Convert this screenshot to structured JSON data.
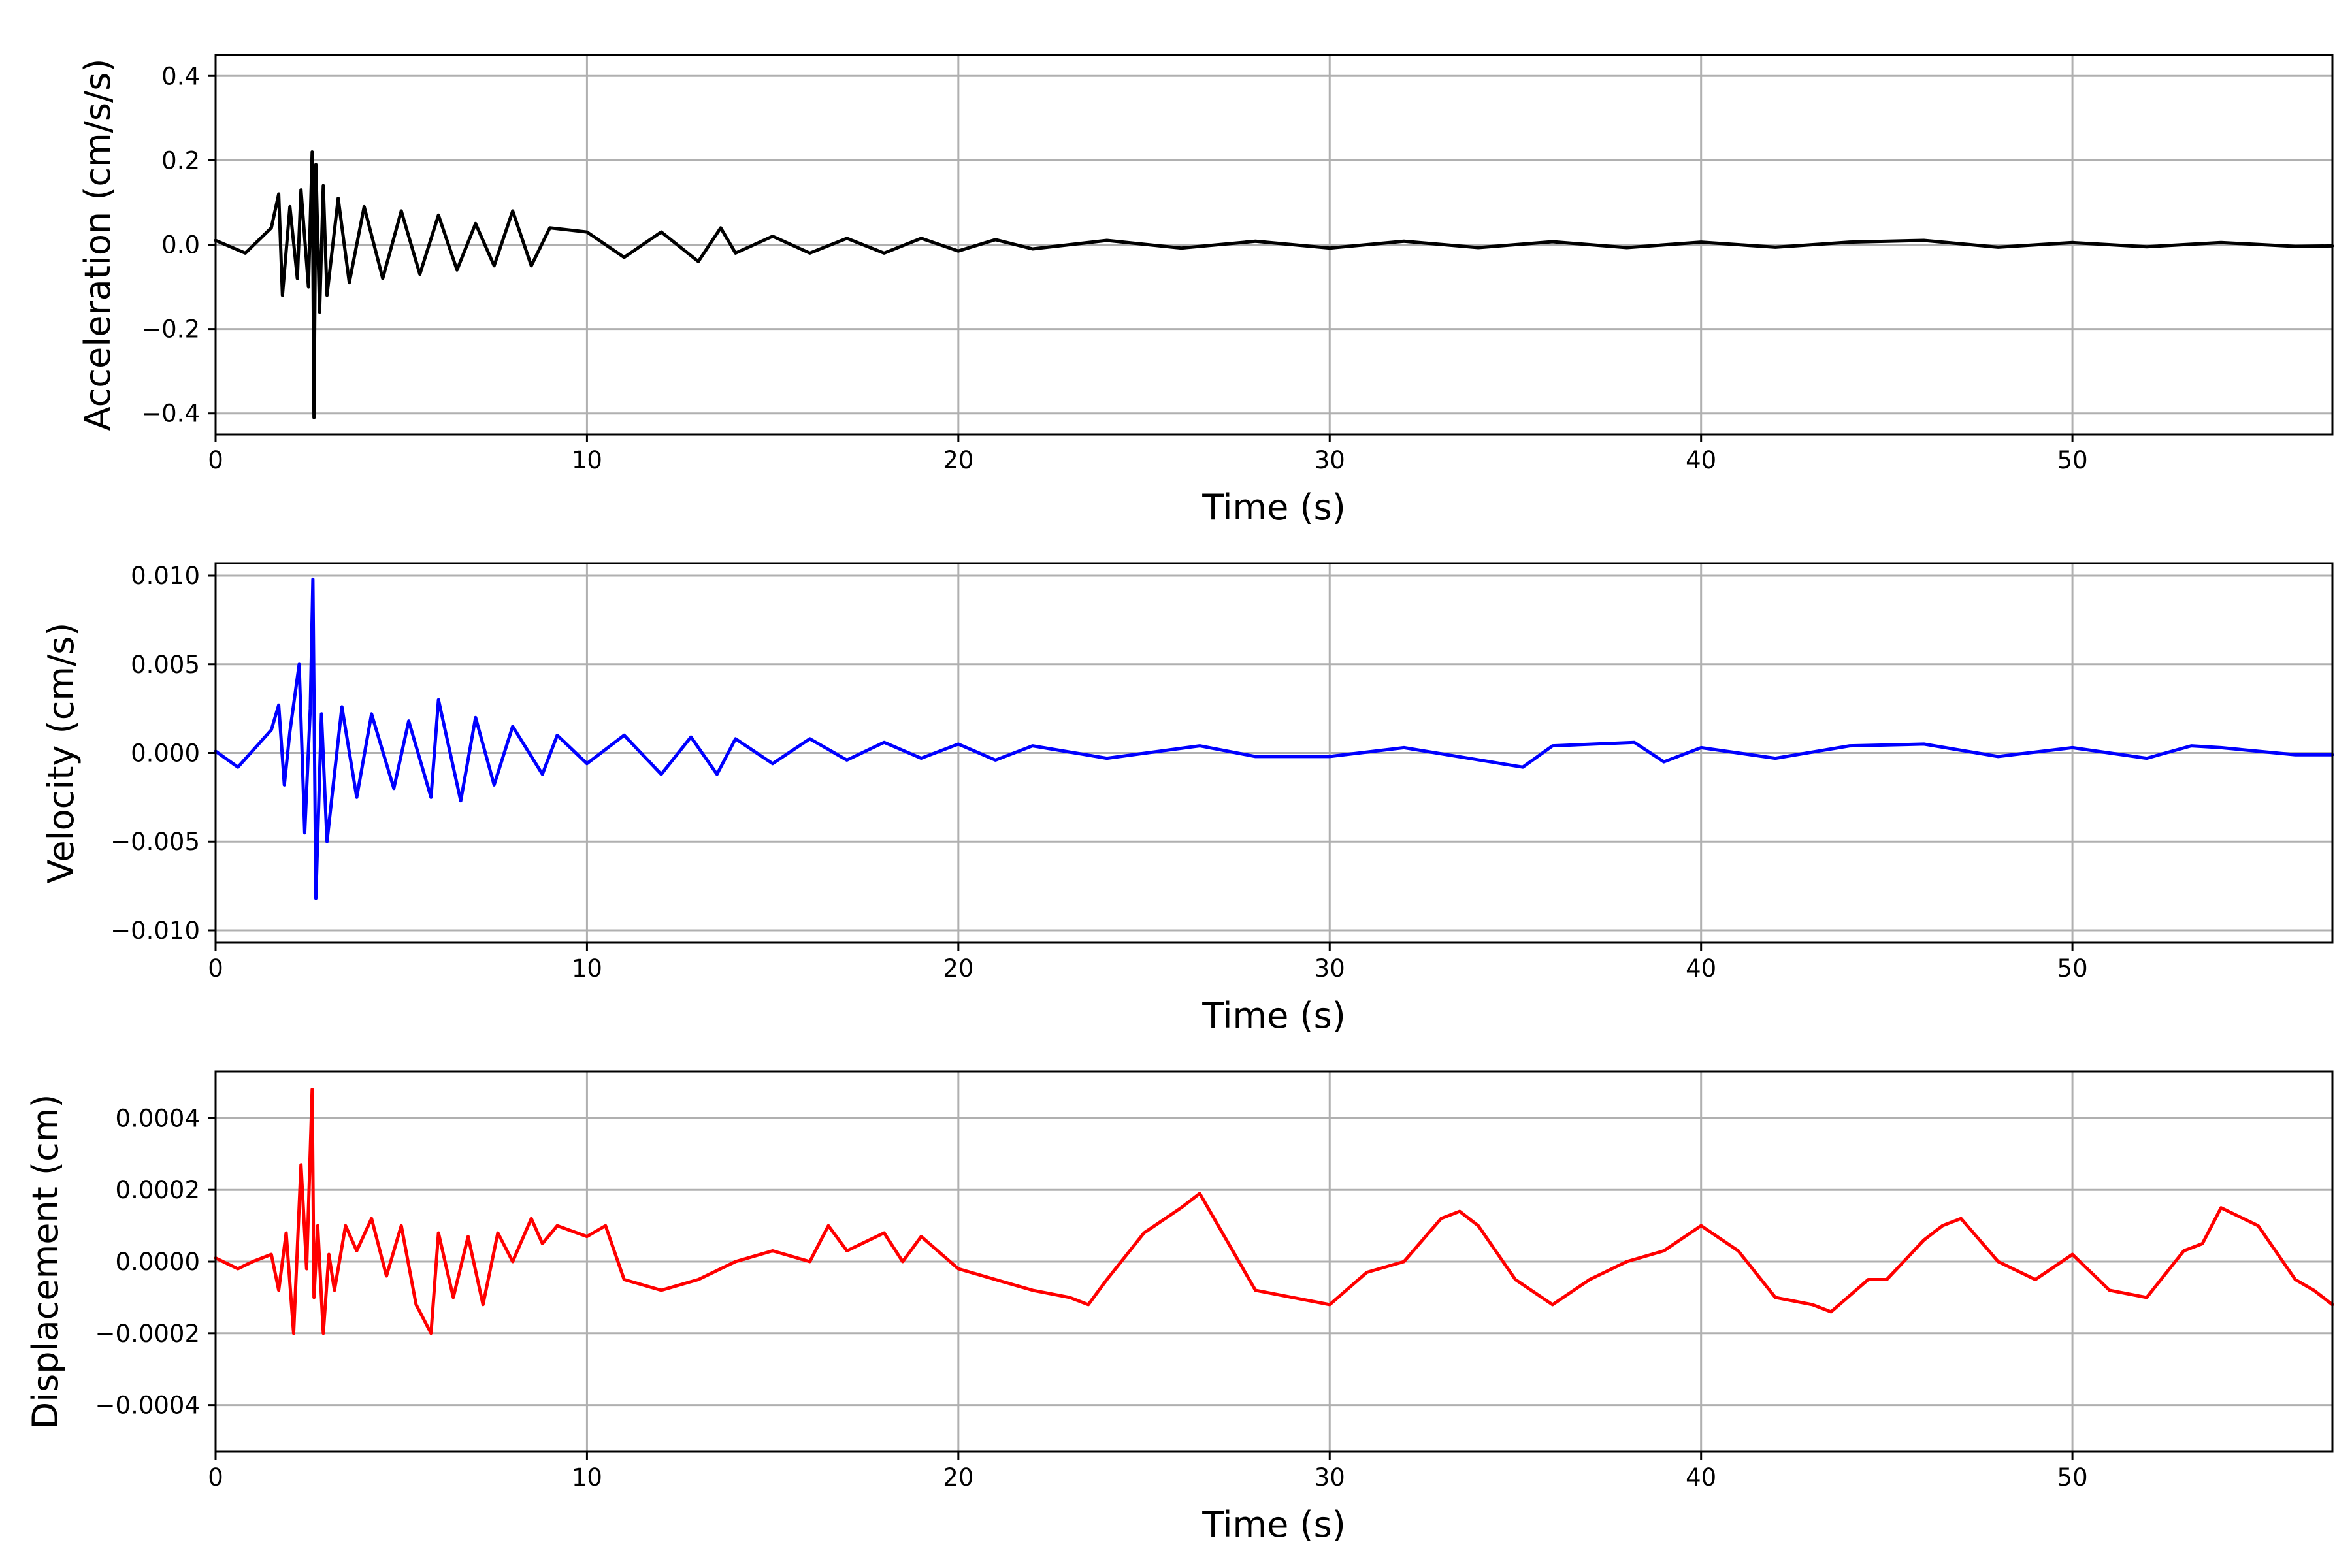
{
  "chart_data": [
    {
      "type": "line",
      "xlabel": "Time (s)",
      "ylabel": "Acceleration (cm/s/s)",
      "xlim": [
        0,
        57
      ],
      "ylim": [
        -0.45,
        0.45
      ],
      "xticks": [
        0,
        10,
        20,
        30,
        40,
        50
      ],
      "xtick_labels": [
        "0",
        "10",
        "20",
        "30",
        "40",
        "50"
      ],
      "yticks": [
        -0.4,
        -0.2,
        0.0,
        0.2,
        0.4
      ],
      "ytick_labels": [
        "−0.4",
        "−0.2",
        "0.0",
        "0.2",
        "0.4"
      ],
      "grid": true,
      "color": "#000000",
      "series": [
        {
          "x": [
            0,
            0.8,
            1.5,
            1.7,
            1.8,
            2.0,
            2.2,
            2.3,
            2.5,
            2.6,
            2.65,
            2.7,
            2.8,
            2.9,
            3.0,
            3.3,
            3.6,
            4.0,
            4.5,
            5.0,
            5.5,
            6.0,
            6.5,
            7.0,
            7.5,
            8.0,
            8.5,
            9.0,
            10.0,
            11.0,
            12.0,
            13.0,
            13.6,
            14.0,
            15.0,
            16.0,
            17.0,
            18.0,
            19.0,
            20.0,
            21.0,
            22.0,
            24.0,
            26.0,
            28.0,
            30.0,
            32.0,
            34.0,
            36.0,
            38.0,
            40.0,
            42.0,
            44.0,
            46.0,
            48.0,
            50.0,
            52.0,
            54.0,
            56.0,
            57.0
          ],
          "y": [
            0.01,
            -0.02,
            0.04,
            0.12,
            -0.12,
            0.09,
            -0.08,
            0.13,
            -0.1,
            0.22,
            -0.41,
            0.19,
            -0.16,
            0.14,
            -0.12,
            0.11,
            -0.09,
            0.09,
            -0.08,
            0.08,
            -0.07,
            0.07,
            -0.06,
            0.05,
            -0.05,
            0.08,
            -0.05,
            0.04,
            0.03,
            -0.03,
            0.03,
            -0.04,
            0.04,
            -0.02,
            0.02,
            -0.02,
            0.015,
            -0.02,
            0.015,
            -0.015,
            0.012,
            -0.01,
            0.01,
            -0.008,
            0.008,
            -0.008,
            0.008,
            -0.007,
            0.007,
            -0.007,
            0.006,
            -0.006,
            0.006,
            0.01,
            -0.006,
            0.005,
            -0.005,
            0.005,
            -0.004,
            -0.003
          ]
        }
      ]
    },
    {
      "type": "line",
      "xlabel": "Time (s)",
      "ylabel": "Velocity (cm/s)",
      "xlim": [
        0,
        57
      ],
      "ylim": [
        -0.0107,
        0.0107
      ],
      "xticks": [
        0,
        10,
        20,
        30,
        40,
        50
      ],
      "xtick_labels": [
        "0",
        "10",
        "20",
        "30",
        "40",
        "50"
      ],
      "yticks": [
        -0.01,
        -0.005,
        0.0,
        0.005,
        0.01
      ],
      "ytick_labels": [
        "−0.010",
        "−0.005",
        "0.000",
        "0.005",
        "0.010"
      ],
      "grid": true,
      "color": "#0000ff",
      "series": [
        {
          "x": [
            0,
            0.6,
            1.5,
            1.7,
            1.85,
            2.0,
            2.25,
            2.4,
            2.55,
            2.62,
            2.7,
            2.85,
            3.0,
            3.4,
            3.8,
            4.2,
            4.8,
            5.2,
            5.8,
            6.0,
            6.6,
            7.0,
            7.5,
            8.0,
            8.8,
            9.2,
            10.0,
            11.0,
            12.0,
            12.8,
            13.5,
            14.0,
            15.0,
            16.0,
            17.0,
            18.0,
            19.0,
            20.0,
            21.0,
            22.0,
            24.0,
            26.5,
            28.0,
            30.0,
            32.0,
            35.2,
            36.0,
            38.2,
            39.0,
            40.0,
            42.0,
            44.0,
            46.0,
            48.0,
            50.0,
            52.0,
            53.2,
            54.0,
            56.0,
            57.0
          ],
          "y": [
            0.0001,
            -0.0008,
            0.0013,
            0.0027,
            -0.0018,
            0.0012,
            0.005,
            -0.0045,
            0.0025,
            0.0098,
            -0.0082,
            0.0022,
            -0.005,
            0.0026,
            -0.0025,
            0.0022,
            -0.002,
            0.0018,
            -0.0025,
            0.003,
            -0.0027,
            0.002,
            -0.0018,
            0.0015,
            -0.0012,
            0.001,
            -0.0006,
            0.001,
            -0.0012,
            0.0009,
            -0.0012,
            0.0008,
            -0.0006,
            0.0008,
            -0.0004,
            0.0006,
            -0.0003,
            0.0005,
            -0.0004,
            0.0004,
            -0.0003,
            0.0004,
            -0.0002,
            -0.0002,
            0.0003,
            -0.0008,
            0.0004,
            0.0006,
            -0.0005,
            0.0003,
            -0.0003,
            0.0004,
            0.0005,
            -0.0002,
            0.0003,
            -0.0003,
            0.0004,
            0.0003,
            -0.0001,
            -0.0001
          ]
        }
      ]
    },
    {
      "type": "line",
      "xlabel": "Time (s)",
      "ylabel": "Displacement (cm)",
      "xlim": [
        0,
        57
      ],
      "ylim": [
        -0.00053,
        0.00053
      ],
      "xticks": [
        0,
        10,
        20,
        30,
        40,
        50
      ],
      "xtick_labels": [
        "0",
        "10",
        "20",
        "30",
        "40",
        "50"
      ],
      "yticks": [
        -0.0004,
        -0.0002,
        0.0,
        0.0002,
        0.0004
      ],
      "ytick_labels": [
        "−0.0004",
        "−0.0002",
        "0.0000",
        "0.0002",
        "0.0004"
      ],
      "grid": true,
      "color": "#ff0000",
      "series": [
        {
          "x": [
            0,
            0.6,
            1.0,
            1.5,
            1.7,
            1.9,
            2.1,
            2.3,
            2.45,
            2.6,
            2.65,
            2.75,
            2.9,
            3.05,
            3.2,
            3.5,
            3.8,
            4.2,
            4.6,
            5.0,
            5.4,
            5.8,
            6.0,
            6.4,
            6.8,
            7.2,
            7.6,
            8.0,
            8.5,
            8.8,
            9.2,
            10.0,
            10.5,
            11.0,
            12.0,
            13.0,
            14.0,
            15.0,
            16.0,
            16.5,
            17.0,
            18.0,
            18.5,
            19.0,
            20.0,
            21.0,
            22.0,
            23.0,
            23.5,
            24.0,
            25.0,
            26.0,
            26.5,
            27.0,
            28.0,
            29.0,
            30.0,
            31.0,
            32.0,
            33.0,
            33.5,
            34.0,
            35.0,
            36.0,
            37.0,
            38.0,
            39.0,
            40.0,
            41.0,
            42.0,
            43.0,
            43.5,
            44.5,
            45.0,
            46.0,
            46.5,
            47.0,
            48.0,
            49.0,
            50.0,
            51.0,
            52.0,
            53.0,
            53.5,
            54.0,
            55.0,
            56.0,
            56.5,
            57.0
          ],
          "y": [
            1e-05,
            -2e-05,
            0.0,
            2e-05,
            -8e-05,
            8e-05,
            -0.0002,
            0.00027,
            -2e-05,
            0.00048,
            -0.0001,
            0.0001,
            -0.0002,
            2e-05,
            -8e-05,
            0.0001,
            3e-05,
            0.00012,
            -4e-05,
            0.0001,
            -0.00012,
            -0.0002,
            8e-05,
            -0.0001,
            7e-05,
            -0.00012,
            8e-05,
            0.0,
            0.00012,
            5e-05,
            0.0001,
            7e-05,
            0.0001,
            -5e-05,
            -8e-05,
            -5e-05,
            0.0,
            3e-05,
            0.0,
            0.0001,
            3e-05,
            8e-05,
            0.0,
            7e-05,
            -2e-05,
            -5e-05,
            -8e-05,
            -0.0001,
            -0.00012,
            -5e-05,
            8e-05,
            0.00015,
            0.00019,
            0.0001,
            -8e-05,
            -0.0001,
            -0.00012,
            -3e-05,
            0.0,
            0.00012,
            0.00014,
            0.0001,
            -5e-05,
            -0.00012,
            -5e-05,
            0.0,
            3e-05,
            0.0001,
            3e-05,
            -0.0001,
            -0.00012,
            -0.00014,
            -5e-05,
            -5e-05,
            6e-05,
            0.0001,
            0.00012,
            0.0,
            -5e-05,
            2e-05,
            -8e-05,
            -0.0001,
            3e-05,
            5e-05,
            0.00015,
            0.0001,
            -5e-05,
            -8e-05,
            -0.00012
          ]
        }
      ]
    }
  ]
}
